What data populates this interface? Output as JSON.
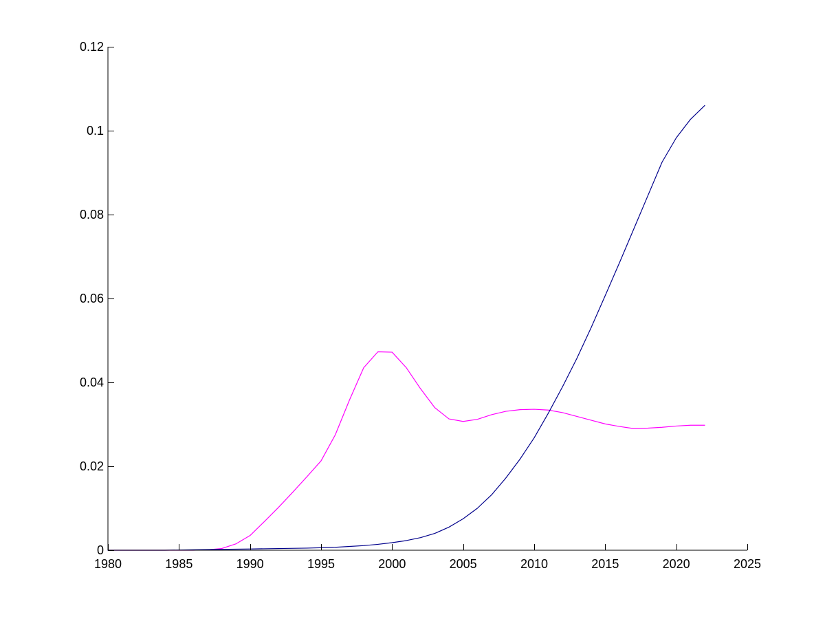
{
  "chart_data": {
    "type": "line",
    "title": "",
    "xlabel": "",
    "ylabel": "",
    "xlim": [
      1980,
      2025
    ],
    "ylim": [
      0,
      0.12
    ],
    "xticks": [
      "1980",
      "1985",
      "1990",
      "1995",
      "2000",
      "2005",
      "2010",
      "2015",
      "2020",
      "2025"
    ],
    "yticks": [
      "0",
      "0.02",
      "0.04",
      "0.06",
      "0.08",
      "0.1",
      "0.12"
    ],
    "grid": false,
    "legend": "none",
    "box": "left-bottom",
    "series": [
      {
        "color": "#ff00ff",
        "x": [
          1980,
          1982,
          1984,
          1986,
          1987,
          1988,
          1989,
          1990,
          1991,
          1992,
          1993,
          1994,
          1995,
          1996,
          1997,
          1998,
          1999,
          2000,
          2001,
          2002,
          2003,
          2004,
          2005,
          2006,
          2007,
          2008,
          2009,
          2010,
          2011,
          2012,
          2013,
          2014,
          2015,
          2016,
          2017,
          2018,
          2019,
          2020,
          2021,
          2022
        ],
        "y": [
          0,
          0,
          0,
          0,
          0.0001,
          0.0004,
          0.0015,
          0.0035,
          0.0068,
          0.0102,
          0.0138,
          0.0175,
          0.0213,
          0.0275,
          0.0358,
          0.0435,
          0.0473,
          0.0472,
          0.0435,
          0.0385,
          0.034,
          0.0313,
          0.0307,
          0.0312,
          0.0323,
          0.0331,
          0.0335,
          0.0336,
          0.0334,
          0.0328,
          0.0319,
          0.031,
          0.0301,
          0.0295,
          0.029,
          0.0291,
          0.0293,
          0.0296,
          0.0298,
          0.0298
        ]
      },
      {
        "color": "#00008b",
        "x": [
          1980,
          1982,
          1984,
          1986,
          1988,
          1990,
          1992,
          1994,
          1996,
          1997,
          1998,
          1999,
          2000,
          2001,
          2002,
          2003,
          2004,
          2005,
          2006,
          2007,
          2008,
          2009,
          2010,
          2011,
          2012,
          2013,
          2014,
          2015,
          2016,
          2017,
          2018,
          2019,
          2020,
          2021,
          2022
        ],
        "y": [
          0,
          0,
          0,
          0.0001,
          0.0002,
          0.0003,
          0.0004,
          0.0005,
          0.0007,
          0.0009,
          0.0011,
          0.0014,
          0.0018,
          0.0023,
          0.003,
          0.004,
          0.0055,
          0.0075,
          0.01,
          0.0132,
          0.0172,
          0.0217,
          0.0268,
          0.0327,
          0.039,
          0.0457,
          0.053,
          0.0607,
          0.0685,
          0.0765,
          0.0845,
          0.0925,
          0.0983,
          0.1027,
          0.106
        ]
      }
    ]
  }
}
